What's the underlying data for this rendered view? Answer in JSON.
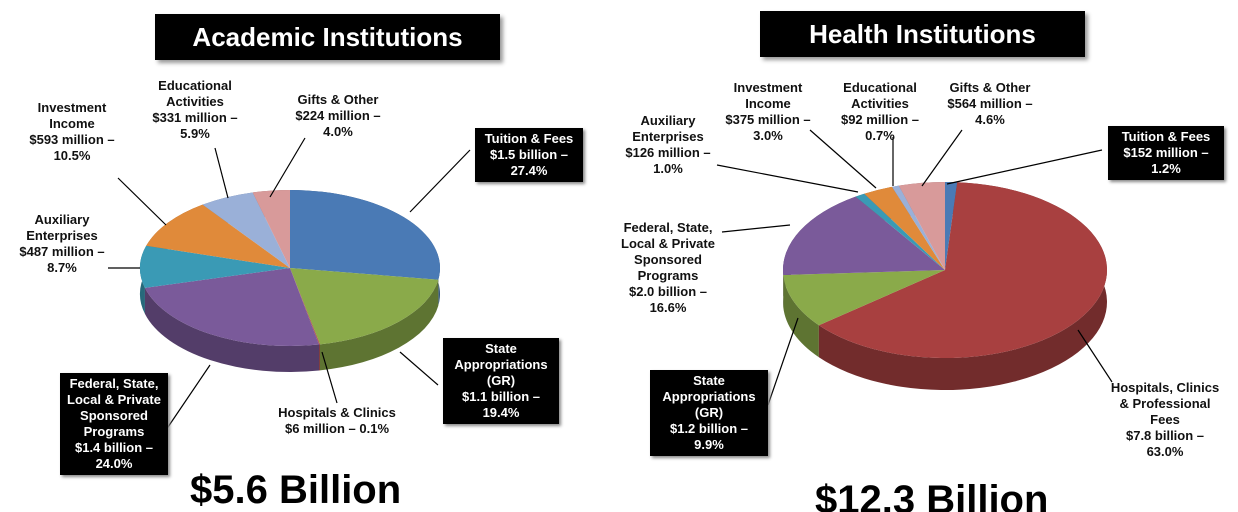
{
  "chart_data": [
    {
      "type": "pie",
      "title": "Academic Institutions",
      "annotation": "$5.6 Billion",
      "categories": [
        "Tuition & Fees",
        "State Appropriations (GR)",
        "Hospitals & Clinics",
        "Federal, State, Local & Private Sponsored Programs",
        "Auxiliary Enterprises",
        "Investment Income",
        "Educational Activities",
        "Gifts & Other"
      ],
      "values": [
        27.4,
        19.4,
        0.1,
        24.0,
        8.7,
        10.5,
        5.9,
        4.0
      ],
      "value_labels": [
        "$1.5 billion – 27.4%",
        "$1.1 billion – 19.4%",
        "$6 million – 0.1%",
        "$1.4 billion – 24.0%",
        "$487 million – 8.7%",
        "$593 million – 10.5%",
        "$331 million – 5.9%",
        "$224 million – 4.0%"
      ],
      "colors": [
        "#4a7ab5",
        "#8aaa4a",
        "#b04848",
        "#7a5a9a",
        "#3a9ab5",
        "#e08a3a",
        "#9ab0d8",
        "#d89a9a"
      ]
    },
    {
      "type": "pie",
      "title": "Health Institutions",
      "annotation": "$12.3 Billion",
      "categories": [
        "Tuition & Fees",
        "Hospitals, Clinics & Professional Fees",
        "State Appropriations (GR)",
        "Federal, State, Local & Private Sponsored Programs",
        "Auxiliary Enterprises",
        "Investment Income",
        "Educational Activities",
        "Gifts & Other"
      ],
      "values": [
        1.2,
        63.0,
        9.9,
        16.6,
        1.0,
        3.0,
        0.7,
        4.6
      ],
      "value_labels": [
        "$152 million – 1.2%",
        "$7.8 billion – 63.0%",
        "$1.2 billion – 9.9%",
        "$2.0 billion – 16.6%",
        "$126 million – 1.0%",
        "$375 million – 3.0%",
        "$92 million – 0.7%",
        "$564 million – 4.6%"
      ],
      "colors": [
        "#4a7ab5",
        "#a84040",
        "#8aaa4a",
        "#7a5a9a",
        "#3a9ab5",
        "#e08a3a",
        "#9ab0d8",
        "#d89a9a"
      ]
    }
  ]
}
